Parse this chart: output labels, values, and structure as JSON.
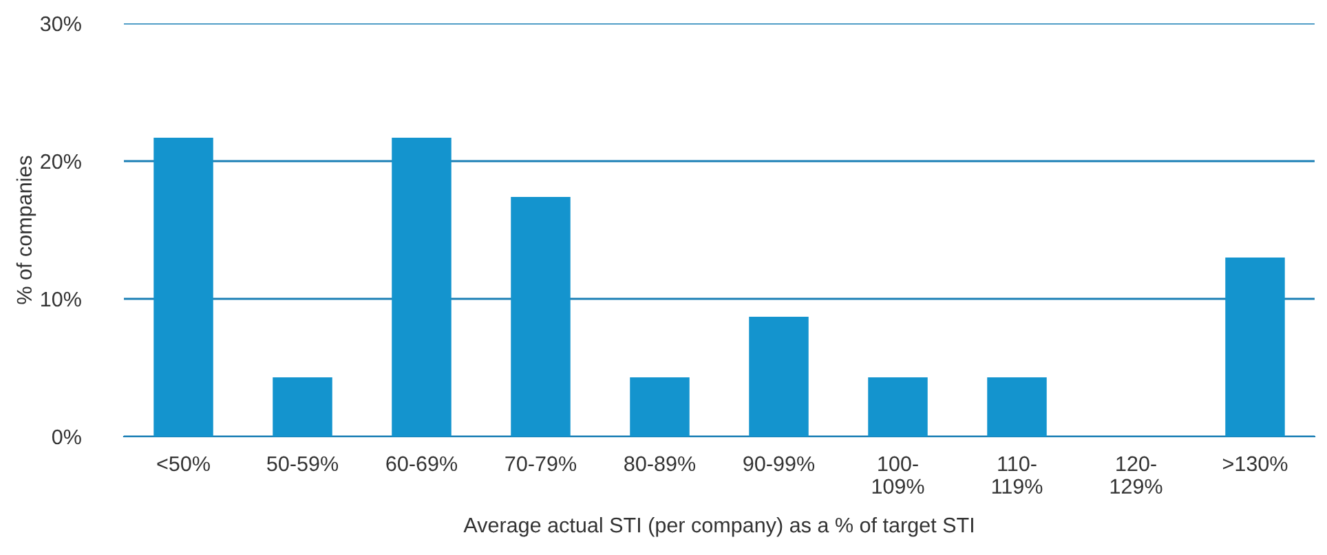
{
  "chart_data": {
    "type": "bar",
    "xlabel": "Average actual STI (per company) as a % of target STI",
    "ylabel": "% of companies",
    "categories": [
      "<50%",
      "50-59%",
      "60-69%",
      "70-79%",
      "80-89%",
      "90-99%",
      "100-\n109%",
      "110-\n119%",
      "120-\n129%",
      ">130%"
    ],
    "values": [
      21.7,
      4.3,
      21.7,
      17.4,
      4.3,
      8.7,
      4.3,
      4.3,
      0,
      13.0
    ],
    "color": "#1494ce",
    "ylim": [
      0,
      30
    ],
    "yticks": [
      {
        "value": 0,
        "label": "0%"
      },
      {
        "value": 10,
        "label": "10%"
      },
      {
        "value": 20,
        "label": "20%"
      },
      {
        "value": 30,
        "label": "30%"
      }
    ],
    "grid": "y",
    "legend": false
  }
}
